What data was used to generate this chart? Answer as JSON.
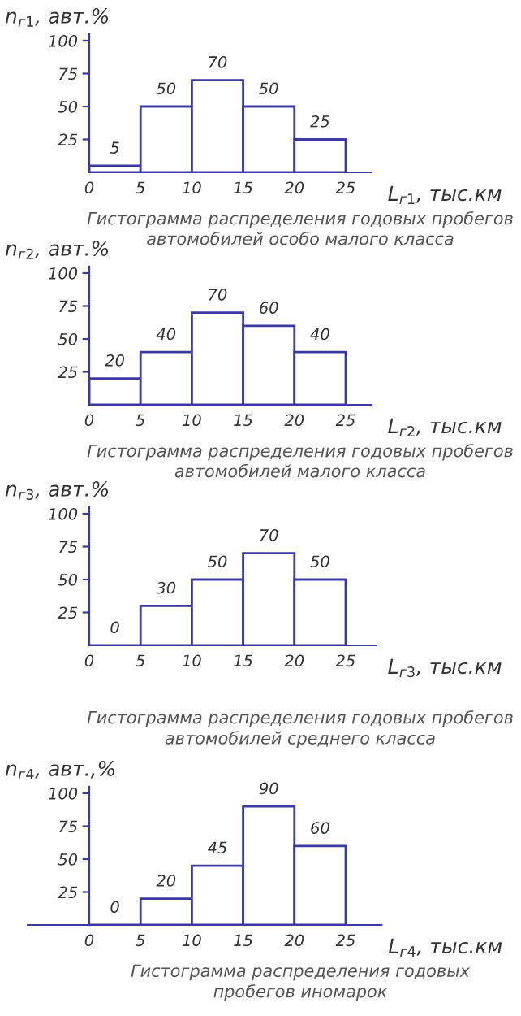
{
  "chart_data": [
    {
      "type": "histogram",
      "title": "Гистограмма распределения годовых пробегов\nавтомобилей особо малого класса",
      "xlabel": "L$_{г1}$, тыс.км",
      "ylabel": "n$_{г1}$, авт.%",
      "bins": [
        0,
        5,
        10,
        15,
        20,
        25
      ],
      "values": [
        5,
        50,
        70,
        50,
        25
      ],
      "color": "#3a3aa0",
      "data_labels": true,
      "xlim": [
        0,
        27.5
      ],
      "ylim": [
        0,
        105
      ],
      "xticks": [
        0,
        5,
        10,
        15,
        20,
        25
      ],
      "yticks": [
        25,
        50,
        75,
        100
      ],
      "grid": false,
      "legend": false
    },
    {
      "type": "histogram",
      "title": "Гистограмма распределения годовых пробегов\nавтомобилей малого класса",
      "xlabel": "L$_{г2}$, тыс.км",
      "ylabel": "n$_{г2}$, авт.%",
      "bins": [
        0,
        5,
        10,
        15,
        20,
        25
      ],
      "values": [
        20,
        40,
        70,
        60,
        40
      ],
      "color": "#3a3aa0",
      "data_labels": true,
      "xlim": [
        0,
        27.5
      ],
      "ylim": [
        0,
        105
      ],
      "xticks": [
        0,
        5,
        10,
        15,
        20,
        25
      ],
      "yticks": [
        25,
        50,
        75,
        100
      ],
      "grid": false,
      "legend": false
    },
    {
      "type": "histogram",
      "title": "Гистограмма распределения годовых пробегов\nавтомобилей среднего класса",
      "xlabel": "L$_{г3}$, тыс.км",
      "ylabel": "n$_{г3}$, авт.%",
      "bins": [
        0,
        5,
        10,
        15,
        20,
        25
      ],
      "values": [
        0,
        30,
        50,
        70,
        50
      ],
      "color": "#3a3aa0",
      "data_labels": true,
      "xlim": [
        0,
        28
      ],
      "ylim": [
        0,
        105
      ],
      "xticks": [
        0,
        5,
        10,
        15,
        20,
        25
      ],
      "yticks": [
        25,
        50,
        75,
        100
      ],
      "grid": false,
      "legend": false
    },
    {
      "type": "histogram",
      "title": "Гистограмма распределения годовых\nпробегов иномарок",
      "xlabel": "L$_{г4}$, тыс.км",
      "ylabel": "n$_{г4}$, авт.,%",
      "bins": [
        0,
        5,
        10,
        15,
        20,
        25
      ],
      "values": [
        0,
        20,
        45,
        90,
        60
      ],
      "color": "#3a3aa0",
      "data_labels": true,
      "xlim": [
        -6,
        28.5
      ],
      "ylim": [
        0,
        105
      ],
      "xticks": [
        0,
        5,
        10,
        15,
        20,
        25
      ],
      "yticks": [
        25,
        50,
        75,
        100
      ],
      "grid": false,
      "legend": false
    }
  ]
}
